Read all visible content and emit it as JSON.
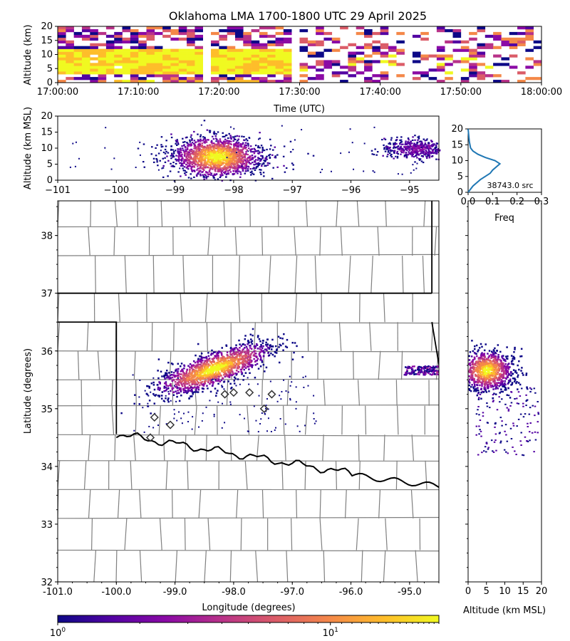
{
  "title": "Oklahoma LMA 1700-1800 UTC 29 April 2025",
  "colormap": [
    "#0d0887",
    "#5302a3",
    "#8b0aa5",
    "#b83289",
    "#db5c68",
    "#f48849",
    "#febd2a",
    "#f0f921"
  ],
  "chart_data": [
    {
      "id": "time-height",
      "type": "heatmap",
      "xlabel": "Time (UTC)",
      "ylabel": "Altitude (km)",
      "xlim": [
        "17:00:00",
        "18:00:00"
      ],
      "ylim": [
        0,
        20
      ],
      "xticks": [
        "17:00:00",
        "17:10:00",
        "17:20:00",
        "17:30:00",
        "17:40:00",
        "17:50:00",
        "18:00:00"
      ],
      "yticks": [
        "0",
        "5",
        "10",
        "15",
        "20"
      ],
      "core": {
        "start": "17:00:00",
        "end": "17:29:00",
        "alt_range_km": [
          3,
          12
        ]
      },
      "gap_minutes": [
        [
          17.8,
          18.5
        ],
        [
          29.5,
          30.2
        ],
        [
          43.0,
          44.0
        ]
      ]
    },
    {
      "id": "lon-height",
      "type": "heatmap",
      "xlabel": "",
      "ylabel": "Altitude (km MSL)",
      "xlim": [
        -101,
        -94.5
      ],
      "ylim": [
        0,
        20
      ],
      "xticks": [
        "−101",
        "−100",
        "−99",
        "−98",
        "−97",
        "−96",
        "−95"
      ],
      "yticks": [
        "0",
        "5",
        "10",
        "15",
        "20"
      ],
      "clusters": [
        {
          "lon": -98.3,
          "alt": 7.5,
          "lon_spread": 0.35,
          "alt_spread": 3.0,
          "weight": 1.0
        },
        {
          "lon": -94.9,
          "alt": 10.0,
          "lon_spread": 0.25,
          "alt_spread": 1.5,
          "weight": 0.25
        }
      ]
    },
    {
      "id": "altitude-histogram",
      "type": "line",
      "xlabel": "Freq",
      "ylabel": "",
      "xlim": [
        0,
        0.3
      ],
      "ylim": [
        0,
        20
      ],
      "xticks": [
        "0.0",
        "0.1",
        "0.2",
        "0.3"
      ],
      "yticks": [
        "0",
        "5",
        "10",
        "15",
        "20"
      ],
      "annotation": "38743.0 src",
      "series": [
        {
          "x": [
            0.0,
            0.02,
            0.05,
            0.09,
            0.1,
            0.13,
            0.11,
            0.07,
            0.04,
            0.02,
            0.01,
            0.005,
            0.0
          ],
          "y": [
            0,
            2,
            4,
            6,
            7,
            9,
            10,
            11,
            12,
            13,
            14,
            16,
            20
          ]
        }
      ]
    },
    {
      "id": "plan-view",
      "type": "heatmap",
      "xlabel": "Longitude (degrees)",
      "ylabel": "Latitude (degrees)",
      "xlim": [
        -101,
        -94.5
      ],
      "ylim": [
        32,
        38.6
      ],
      "xticks": [
        "-101.0",
        "-100.0",
        "-99.0",
        "-98.0",
        "-97.0",
        "-96.0",
        "-95.0"
      ],
      "yticks": [
        "32",
        "33",
        "34",
        "35",
        "36",
        "37",
        "38"
      ],
      "main_cluster": {
        "lon_range": [
          -99.3,
          -97.4
        ],
        "lat_range": [
          35.3,
          36.1
        ]
      },
      "east_cluster": {
        "lon_range": [
          -95.1,
          -94.5
        ],
        "lat_range": [
          35.6,
          35.75
        ]
      },
      "stations": [
        {
          "lon": -98.15,
          "lat": 35.25
        },
        {
          "lon": -98.0,
          "lat": 35.28
        },
        {
          "lon": -97.73,
          "lat": 35.28
        },
        {
          "lon": -97.35,
          "lat": 35.25
        },
        {
          "lon": -97.48,
          "lat": 35.0
        },
        {
          "lon": -99.35,
          "lat": 34.85
        },
        {
          "lon": -99.08,
          "lat": 34.72
        },
        {
          "lon": -99.42,
          "lat": 34.5
        }
      ]
    },
    {
      "id": "altitude-latitude",
      "type": "heatmap",
      "xlabel": "Altitude (km MSL)",
      "ylabel": "",
      "xlim": [
        0,
        20
      ],
      "ylim": [
        32,
        38.6
      ],
      "xticks": [
        "0",
        "5",
        "10",
        "15",
        "20"
      ],
      "core": {
        "alt_range": [
          1,
          9
        ],
        "lat_range": [
          35.4,
          35.95
        ]
      }
    },
    {
      "id": "colorbar",
      "type": "heatmap",
      "scale": "log",
      "range": [
        1,
        25
      ],
      "tick_labels": [
        {
          "base": "10",
          "exp": "0",
          "value": 1
        },
        {
          "base": "10",
          "exp": "1",
          "value": 10
        }
      ]
    }
  ]
}
